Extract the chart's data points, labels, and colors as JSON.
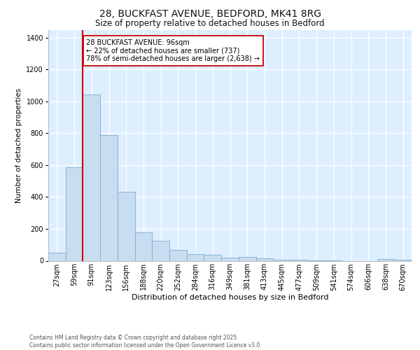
{
  "title_line1": "28, BUCKFAST AVENUE, BEDFORD, MK41 8RG",
  "title_line2": "Size of property relative to detached houses in Bedford",
  "xlabel": "Distribution of detached houses by size in Bedford",
  "ylabel": "Number of detached properties",
  "categories": [
    "27sqm",
    "59sqm",
    "91sqm",
    "123sqm",
    "156sqm",
    "188sqm",
    "220sqm",
    "252sqm",
    "284sqm",
    "316sqm",
    "349sqm",
    "381sqm",
    "413sqm",
    "445sqm",
    "477sqm",
    "509sqm",
    "541sqm",
    "574sqm",
    "606sqm",
    "638sqm",
    "670sqm"
  ],
  "values": [
    50,
    585,
    1045,
    790,
    435,
    180,
    125,
    68,
    42,
    38,
    20,
    22,
    14,
    8,
    5,
    3,
    1,
    0,
    0,
    12,
    5
  ],
  "bar_color": "#c8ddf0",
  "bar_edgecolor": "#7aafd4",
  "plot_bg_color": "#ddeeff",
  "grid_color": "#ffffff",
  "fig_bg_color": "#ffffff",
  "vline_color": "#cc0000",
  "vline_x_index": 2,
  "annotation_text": "28 BUCKFAST AVENUE: 96sqm\n← 22% of detached houses are smaller (737)\n78% of semi-detached houses are larger (2,638) →",
  "annotation_box_facecolor": "#ffffff",
  "annotation_box_edgecolor": "#cc0000",
  "footer_line1": "Contains HM Land Registry data © Crown copyright and database right 2025.",
  "footer_line2": "Contains public sector information licensed under the Open Government Licence v3.0.",
  "ylim": [
    0,
    1450
  ],
  "yticks": [
    0,
    200,
    400,
    600,
    800,
    1000,
    1200,
    1400
  ],
  "title1_fontsize": 10,
  "title2_fontsize": 8.5,
  "xlabel_fontsize": 8,
  "ylabel_fontsize": 7.5,
  "tick_fontsize": 7,
  "annot_fontsize": 7,
  "footer_fontsize": 5.5
}
